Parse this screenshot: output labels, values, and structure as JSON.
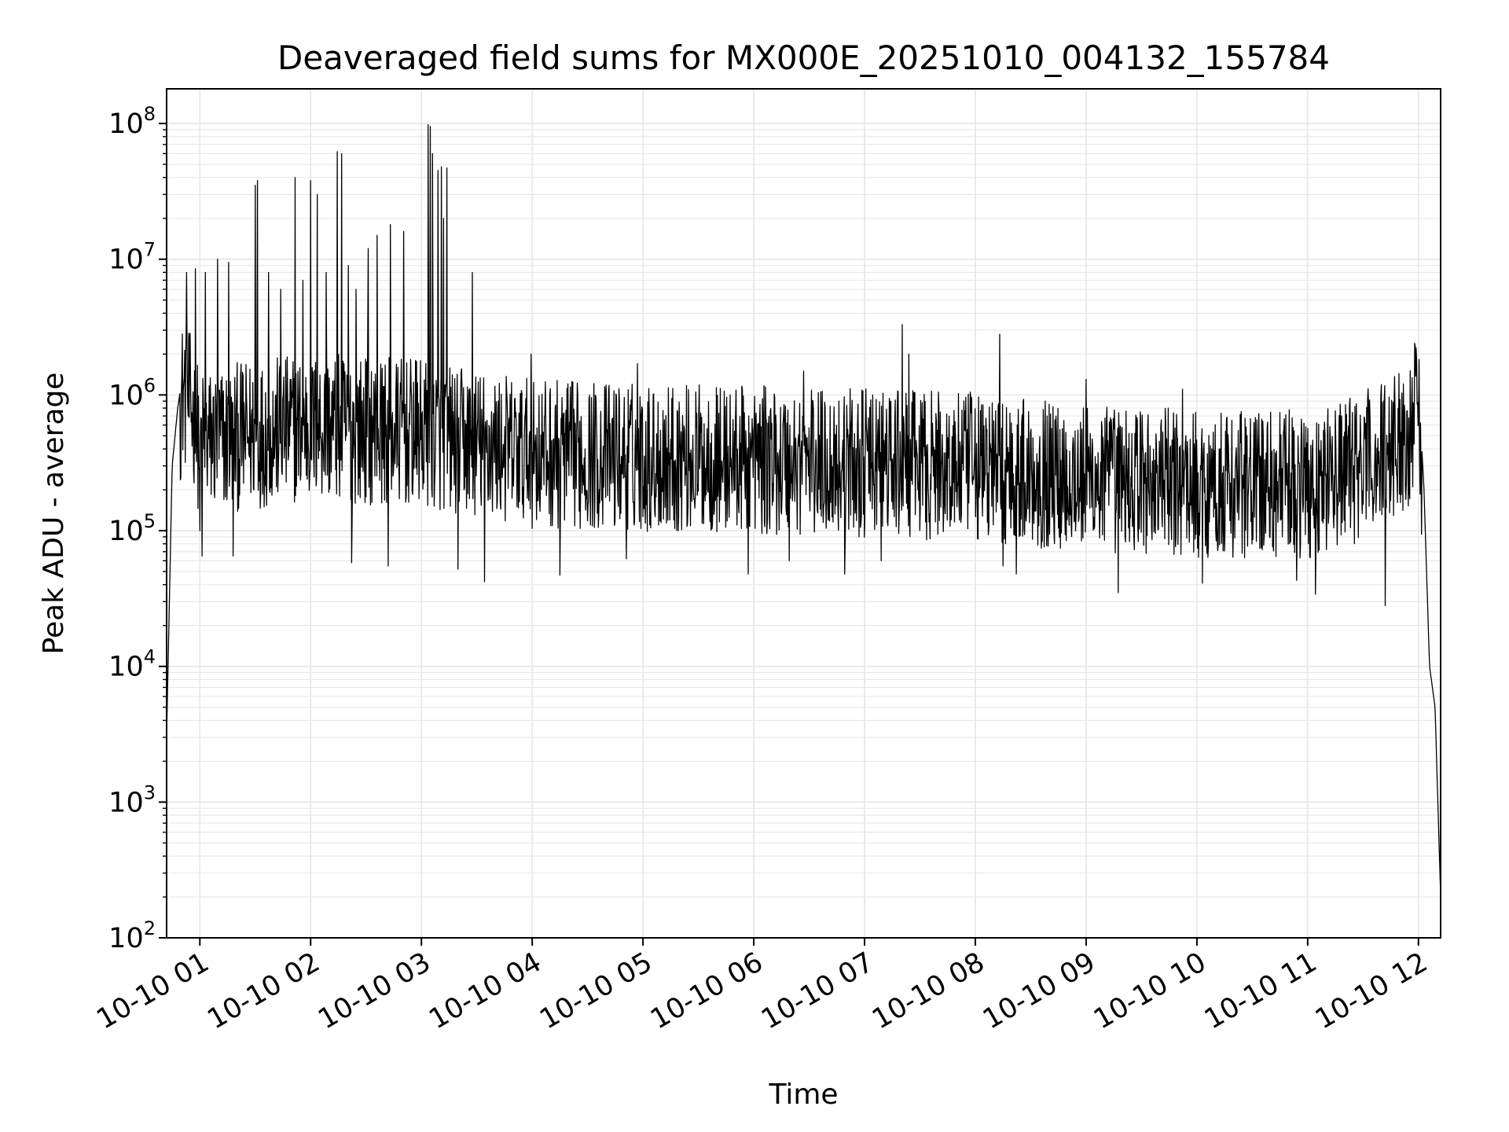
{
  "chart_data": {
    "type": "line",
    "title": "Deaveraged field sums for MX000E_20251010_004132_155784",
    "xlabel": "Time",
    "ylabel": "Peak ADU - average",
    "yscale": "log",
    "ylim": [
      100,
      180000000
    ],
    "xlim": [
      0.7,
      12.2
    ],
    "x_unit": "hours after 2025-10-10 00:00",
    "grid": true,
    "line_color": "#000000",
    "grid_color": "#e6e6e6",
    "x_ticks": [
      {
        "value": 1,
        "label": "10-10 01"
      },
      {
        "value": 2,
        "label": "10-10 02"
      },
      {
        "value": 3,
        "label": "10-10 03"
      },
      {
        "value": 4,
        "label": "10-10 04"
      },
      {
        "value": 5,
        "label": "10-10 05"
      },
      {
        "value": 6,
        "label": "10-10 06"
      },
      {
        "value": 7,
        "label": "10-10 07"
      },
      {
        "value": 8,
        "label": "10-10 08"
      },
      {
        "value": 9,
        "label": "10-10 09"
      },
      {
        "value": 10,
        "label": "10-10 10"
      },
      {
        "value": 11,
        "label": "10-10 11"
      },
      {
        "value": 12,
        "label": "10-10 12"
      }
    ],
    "y_ticks": [
      {
        "value": 100,
        "base": "10",
        "exp": "2"
      },
      {
        "value": 1000,
        "base": "10",
        "exp": "3"
      },
      {
        "value": 10000,
        "base": "10",
        "exp": "4"
      },
      {
        "value": 100000,
        "base": "10",
        "exp": "5"
      },
      {
        "value": 1000000,
        "base": "10",
        "exp": "6"
      },
      {
        "value": 10000000,
        "base": "10",
        "exp": "7"
      },
      {
        "value": 100000000,
        "base": "10",
        "exp": "8"
      }
    ],
    "envelope": [
      {
        "x": 0.7,
        "y": 3000
      },
      {
        "x": 0.75,
        "y": 300000
      },
      {
        "x": 0.8,
        "y": 800000
      },
      {
        "x": 0.85,
        "y": 1500000
      },
      {
        "x": 0.9,
        "y": 1200000
      },
      {
        "x": 1.0,
        "y": 600000
      },
      {
        "x": 2.0,
        "y": 800000
      },
      {
        "x": 3.0,
        "y": 700000
      },
      {
        "x": 4.0,
        "y": 500000
      },
      {
        "x": 6.0,
        "y": 450000
      },
      {
        "x": 8.0,
        "y": 400000
      },
      {
        "x": 9.0,
        "y": 330000
      },
      {
        "x": 10.0,
        "y": 300000
      },
      {
        "x": 11.0,
        "y": 300000
      },
      {
        "x": 11.5,
        "y": 400000
      },
      {
        "x": 11.9,
        "y": 700000
      },
      {
        "x": 12.0,
        "y": 1200000
      },
      {
        "x": 12.05,
        "y": 200000
      },
      {
        "x": 12.1,
        "y": 10000
      },
      {
        "x": 12.15,
        "y": 5000
      },
      {
        "x": 12.2,
        "y": 200
      }
    ],
    "spikes": [
      {
        "x": 0.88,
        "y": 8000000
      },
      {
        "x": 0.96,
        "y": 8500000
      },
      {
        "x": 1.05,
        "y": 8000000
      },
      {
        "x": 1.16,
        "y": 10000000
      },
      {
        "x": 1.26,
        "y": 9500000
      },
      {
        "x": 1.5,
        "y": 35000000
      },
      {
        "x": 1.52,
        "y": 38000000
      },
      {
        "x": 1.62,
        "y": 8000000
      },
      {
        "x": 1.73,
        "y": 6000000
      },
      {
        "x": 1.86,
        "y": 40000000
      },
      {
        "x": 1.93,
        "y": 7000000
      },
      {
        "x": 2.0,
        "y": 38000000
      },
      {
        "x": 2.06,
        "y": 30000000
      },
      {
        "x": 2.14,
        "y": 8000000
      },
      {
        "x": 2.24,
        "y": 62000000
      },
      {
        "x": 2.28,
        "y": 60000000
      },
      {
        "x": 2.34,
        "y": 9000000
      },
      {
        "x": 2.41,
        "y": 6000000
      },
      {
        "x": 2.52,
        "y": 12000000
      },
      {
        "x": 2.6,
        "y": 15000000
      },
      {
        "x": 2.72,
        "y": 18000000
      },
      {
        "x": 2.84,
        "y": 16000000
      },
      {
        "x": 3.06,
        "y": 98000000
      },
      {
        "x": 3.08,
        "y": 95000000
      },
      {
        "x": 3.1,
        "y": 60000000
      },
      {
        "x": 3.15,
        "y": 45000000
      },
      {
        "x": 3.18,
        "y": 48000000
      },
      {
        "x": 3.2,
        "y": 20000000
      },
      {
        "x": 3.23,
        "y": 47000000
      },
      {
        "x": 3.46,
        "y": 8000000
      },
      {
        "x": 3.99,
        "y": 2000000
      },
      {
        "x": 4.95,
        "y": 1700000
      },
      {
        "x": 6.45,
        "y": 1500000
      },
      {
        "x": 7.34,
        "y": 3300000
      },
      {
        "x": 7.4,
        "y": 2000000
      },
      {
        "x": 8.22,
        "y": 2800000
      },
      {
        "x": 9.0,
        "y": 1300000
      },
      {
        "x": 9.87,
        "y": 1100000
      },
      {
        "x": 11.97,
        "y": 2300000
      }
    ],
    "dips": [
      {
        "x": 1.0,
        "y": 100000
      },
      {
        "x": 1.02,
        "y": 65000
      },
      {
        "x": 1.3,
        "y": 65000
      },
      {
        "x": 2.37,
        "y": 58000
      },
      {
        "x": 2.7,
        "y": 55000
      },
      {
        "x": 3.33,
        "y": 52000
      },
      {
        "x": 3.57,
        "y": 42000
      },
      {
        "x": 4.25,
        "y": 47000
      },
      {
        "x": 4.85,
        "y": 62000
      },
      {
        "x": 5.95,
        "y": 48000
      },
      {
        "x": 6.32,
        "y": 60000
      },
      {
        "x": 6.82,
        "y": 48000
      },
      {
        "x": 7.15,
        "y": 60000
      },
      {
        "x": 8.25,
        "y": 55000
      },
      {
        "x": 8.37,
        "y": 48000
      },
      {
        "x": 9.29,
        "y": 35000
      },
      {
        "x": 10.05,
        "y": 41000
      },
      {
        "x": 10.9,
        "y": 43000
      },
      {
        "x": 11.07,
        "y": 34000
      },
      {
        "x": 11.7,
        "y": 28000
      }
    ]
  }
}
